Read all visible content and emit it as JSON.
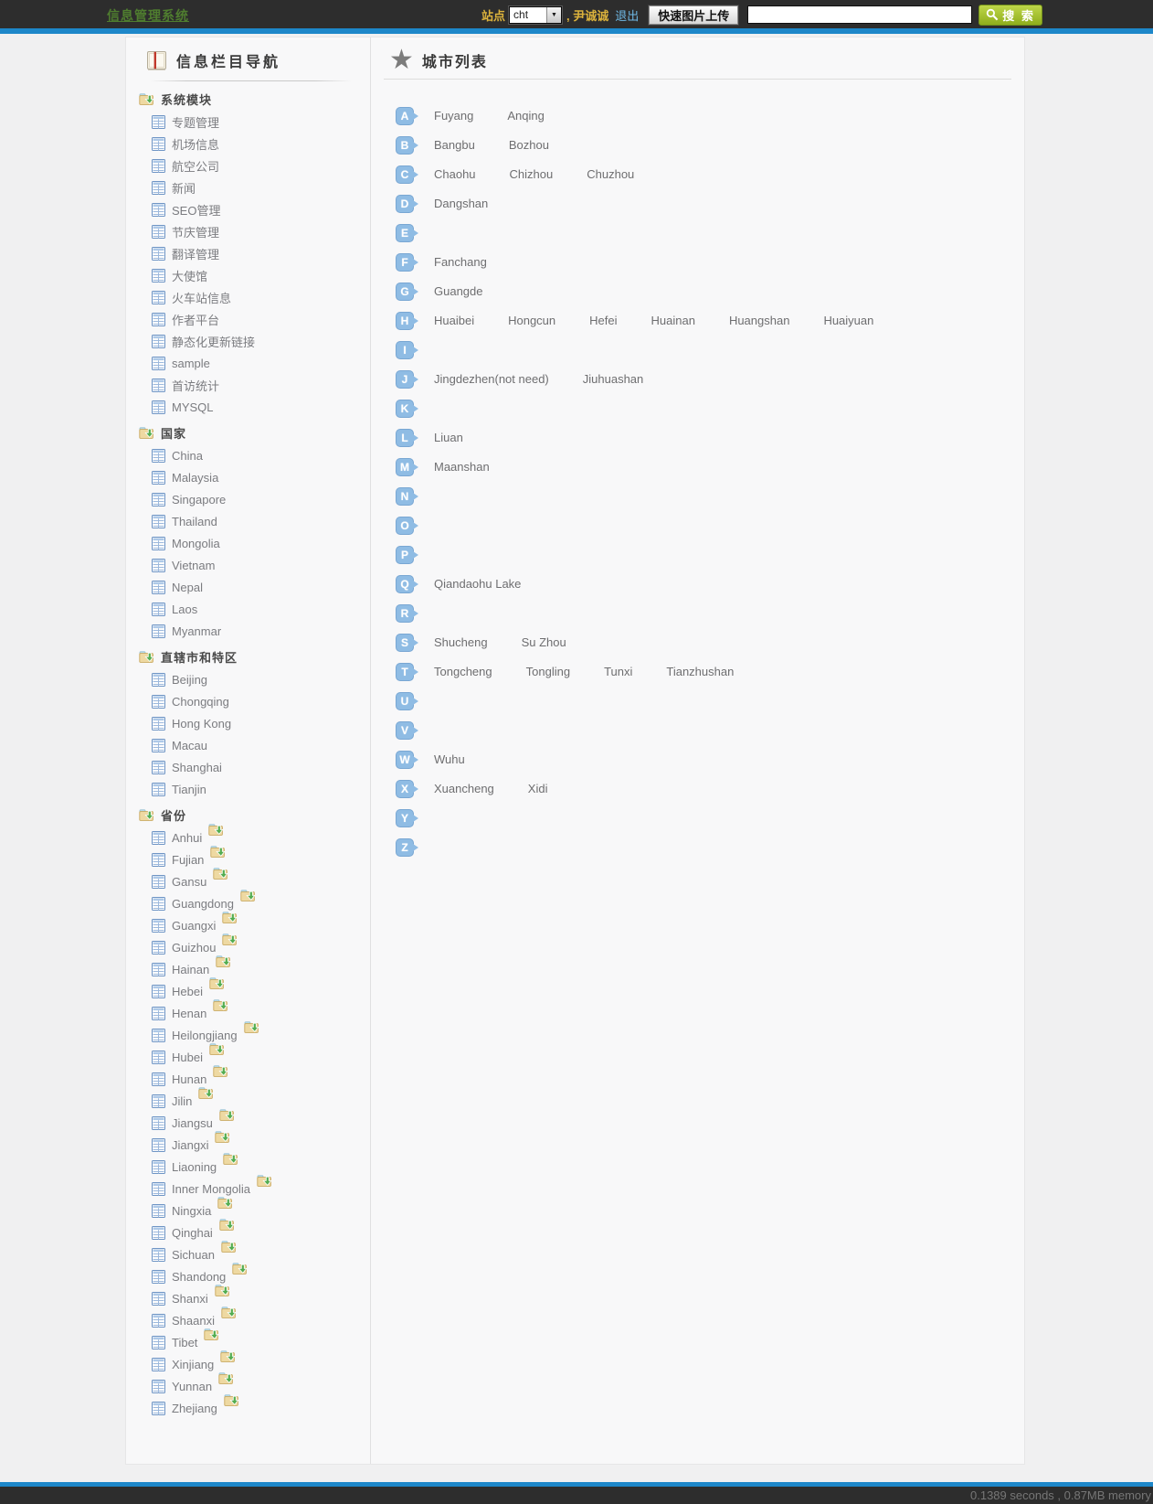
{
  "header": {
    "app_title": "信息管理系统",
    "site_label": "站点",
    "site_select_value": "cht",
    "user_text": ", 尹诚诚",
    "logout_label": "退出",
    "upload_button_label": "快速图片上传",
    "search_input_value": "",
    "search_button_label": "搜 索"
  },
  "colors": {
    "topbar_bg": "#2d2d2d",
    "accent_blue": "#1d87c9",
    "title_green": "#4f7d2f",
    "gold_text": "#dcb33c",
    "logout_blue": "#6fb9e6",
    "search_button_green": "#9ab62b",
    "badge_blue": "#8fbce4"
  },
  "icons": {
    "sidebar_header": "book-icon",
    "section": "folder-down-icon",
    "item": "table-icon",
    "province_add": "add-folder-icon",
    "main_header": "star-icon",
    "search": "search-icon",
    "select_arrow": "chevron-down-icon"
  },
  "sidebar": {
    "title": "信息栏目导航",
    "sections": [
      {
        "label": "系统模块",
        "item_add_icon": false,
        "items": [
          "专题管理",
          "机场信息",
          "航空公司",
          "新闻",
          "SEO管理",
          "节庆管理",
          "翻译管理",
          "大使馆",
          "火车站信息",
          "作者平台",
          "静态化更新链接",
          "sample",
          "首访统计",
          "MYSQL"
        ]
      },
      {
        "label": "国家",
        "item_add_icon": false,
        "items": [
          "China",
          "Malaysia",
          "Singapore",
          "Thailand",
          "Mongolia",
          "Vietnam",
          "Nepal",
          "Laos",
          "Myanmar"
        ]
      },
      {
        "label": "直辖市和特区",
        "item_add_icon": false,
        "items": [
          "Beijing",
          "Chongqing",
          "Hong Kong",
          "Macau",
          "Shanghai",
          "Tianjin"
        ]
      },
      {
        "label": "省份",
        "item_add_icon": true,
        "items": [
          "Anhui",
          "Fujian",
          "Gansu",
          "Guangdong",
          "Guangxi",
          "Guizhou",
          "Hainan",
          "Hebei",
          "Henan",
          "Heilongjiang",
          "Hubei",
          "Hunan",
          "Jilin",
          "Jiangsu",
          "Jiangxi",
          "Liaoning",
          "Inner Mongolia",
          "Ningxia",
          "Qinghai",
          "Sichuan",
          "Shandong",
          "Shanxi",
          "Shaanxi",
          "Tibet",
          "Xinjiang",
          "Yunnan",
          "Zhejiang"
        ]
      }
    ]
  },
  "main": {
    "title": "城市列表",
    "rows": [
      {
        "letter": "A",
        "cities": [
          "Fuyang",
          "Anqing"
        ]
      },
      {
        "letter": "B",
        "cities": [
          "Bangbu",
          "Bozhou"
        ]
      },
      {
        "letter": "C",
        "cities": [
          "Chaohu",
          "Chizhou",
          "Chuzhou"
        ]
      },
      {
        "letter": "D",
        "cities": [
          "Dangshan"
        ]
      },
      {
        "letter": "E",
        "cities": []
      },
      {
        "letter": "F",
        "cities": [
          "Fanchang"
        ]
      },
      {
        "letter": "G",
        "cities": [
          "Guangde"
        ]
      },
      {
        "letter": "H",
        "cities": [
          "Huaibei",
          "Hongcun",
          "Hefei",
          "Huainan",
          "Huangshan",
          "Huaiyuan"
        ]
      },
      {
        "letter": "I",
        "cities": []
      },
      {
        "letter": "J",
        "cities": [
          "Jingdezhen(not need)",
          "Jiuhuashan"
        ]
      },
      {
        "letter": "K",
        "cities": []
      },
      {
        "letter": "L",
        "cities": [
          "Liuan"
        ]
      },
      {
        "letter": "M",
        "cities": [
          "Maanshan"
        ]
      },
      {
        "letter": "N",
        "cities": []
      },
      {
        "letter": "O",
        "cities": []
      },
      {
        "letter": "P",
        "cities": []
      },
      {
        "letter": "Q",
        "cities": [
          "Qiandaohu Lake"
        ]
      },
      {
        "letter": "R",
        "cities": []
      },
      {
        "letter": "S",
        "cities": [
          "Shucheng",
          "Su Zhou"
        ]
      },
      {
        "letter": "T",
        "cities": [
          "Tongcheng",
          "Tongling",
          "Tunxi",
          "Tianzhushan"
        ]
      },
      {
        "letter": "U",
        "cities": []
      },
      {
        "letter": "V",
        "cities": []
      },
      {
        "letter": "W",
        "cities": [
          "Wuhu"
        ]
      },
      {
        "letter": "X",
        "cities": [
          "Xuancheng",
          "Xidi"
        ]
      },
      {
        "letter": "Y",
        "cities": []
      },
      {
        "letter": "Z",
        "cities": []
      }
    ]
  },
  "footer": {
    "stats": "0.1389 seconds , 0.87MB memory"
  }
}
